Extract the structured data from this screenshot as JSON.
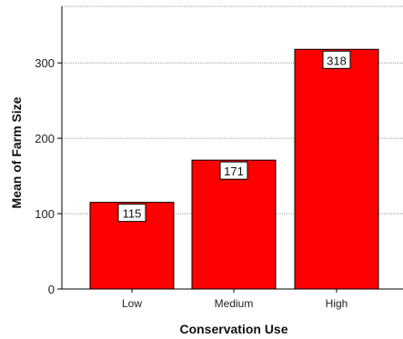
{
  "chart_data": {
    "type": "bar",
    "categories": [
      "Low",
      "Medium",
      "High"
    ],
    "values": [
      115,
      171,
      318
    ],
    "data_labels": [
      "115",
      "171",
      "318"
    ],
    "xlabel": "Conservation Use",
    "ylabel": "Mean of Farm Size",
    "ylim": [
      0,
      375
    ],
    "yticks": [
      0,
      100,
      200,
      300
    ],
    "grid": true,
    "bar_color": "#ff0000",
    "bar_edge_color": "#000000"
  }
}
